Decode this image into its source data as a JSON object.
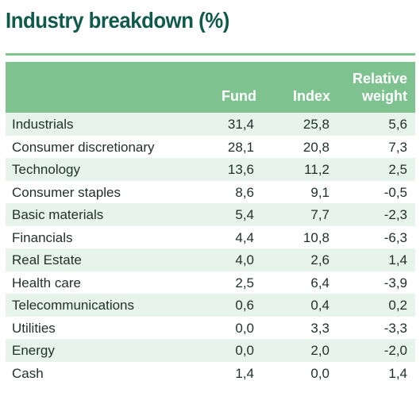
{
  "title": "Industry breakdown (%)",
  "headers": {
    "fund": "Fund",
    "index": "Index",
    "relative_line1": "Relative",
    "relative_line2": "weight"
  },
  "rows": [
    {
      "name": "Industrials",
      "fund": "31,4",
      "index": "25,8",
      "relative": "5,6"
    },
    {
      "name": "Consumer discretionary",
      "fund": "28,1",
      "index": "20,8",
      "relative": "7,3"
    },
    {
      "name": "Technology",
      "fund": "13,6",
      "index": "11,2",
      "relative": "2,5"
    },
    {
      "name": "Consumer staples",
      "fund": "8,6",
      "index": "9,1",
      "relative": "-0,5"
    },
    {
      "name": "Basic materials",
      "fund": "5,4",
      "index": "7,7",
      "relative": "-2,3"
    },
    {
      "name": "Financials",
      "fund": "4,4",
      "index": "10,8",
      "relative": "-6,3"
    },
    {
      "name": "Real Estate",
      "fund": "4,0",
      "index": "2,6",
      "relative": "1,4"
    },
    {
      "name": "Health care",
      "fund": "2,5",
      "index": "6,4",
      "relative": "-3,9"
    },
    {
      "name": "Telecommunications",
      "fund": "0,6",
      "index": "0,4",
      "relative": "0,2"
    },
    {
      "name": "Utilities",
      "fund": "0,0",
      "index": "3,3",
      "relative": "-3,3"
    },
    {
      "name": "Energy",
      "fund": "0,0",
      "index": "2,0",
      "relative": "-2,0"
    },
    {
      "name": "Cash",
      "fund": "1,4",
      "index": "0,0",
      "relative": "1,4"
    }
  ],
  "colors": {
    "title": "#0f5a4a",
    "header_bg": "#7dc28f",
    "row_shade": "#e6f4ec",
    "rule": "#7fc58c"
  }
}
